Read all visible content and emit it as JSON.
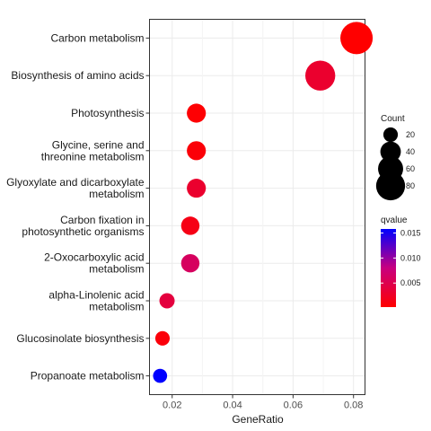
{
  "chart_data": {
    "type": "scatter",
    "title": "",
    "xlabel": "GeneRatio",
    "ylabel": "",
    "xlim": [
      0.0125,
      0.0838
    ],
    "xticks": [
      "0.02",
      "0.04",
      "0.06",
      "0.08"
    ],
    "xtick_values": [
      0.02,
      0.04,
      0.06,
      0.08
    ],
    "grid": true,
    "legend_position": "right",
    "categories": [
      "Carbon metabolism",
      "Biosynthesis of amino acids",
      "Photosynthesis",
      "Glycine, serine and threonine metabolism",
      "Glyoxylate and dicarboxylate metabolism",
      "Carbon fixation in photosynthetic organisms",
      "2-Oxocarboxylic acid metabolism",
      "alpha-Linolenic acid metabolism",
      "Glucosinolate biosynthesis",
      "Propanoate metabolism"
    ],
    "category_lines": [
      [
        "Carbon metabolism"
      ],
      [
        "Biosynthesis of amino acids"
      ],
      [
        "Photosynthesis"
      ],
      [
        "Glycine, serine and",
        "threonine metabolism"
      ],
      [
        "Glyoxylate and dicarboxylate",
        "metabolism"
      ],
      [
        "Carbon fixation in",
        "photosynthetic organisms"
      ],
      [
        "2-Oxocarboxylic acid",
        "metabolism"
      ],
      [
        "alpha-Linolenic acid",
        "metabolism"
      ],
      [
        "Glucosinolate biosynthesis"
      ],
      [
        "Propanoate metabolism"
      ]
    ],
    "points": [
      {
        "category": "Carbon metabolism",
        "x": 0.081,
        "count": 90,
        "qvalue": 0.0002
      },
      {
        "category": "Biosynthesis of amino acids",
        "x": 0.069,
        "count": 77,
        "qvalue": 0.003
      },
      {
        "category": "Photosynthesis",
        "x": 0.028,
        "count": 31,
        "qvalue": 0.0004
      },
      {
        "category": "Glycine, serine and threonine metabolism",
        "x": 0.028,
        "count": 31,
        "qvalue": 0.0007
      },
      {
        "category": "Glyoxylate and dicarboxylate metabolism",
        "x": 0.028,
        "count": 31,
        "qvalue": 0.003
      },
      {
        "category": "Carbon fixation in photosynthetic organisms",
        "x": 0.026,
        "count": 29,
        "qvalue": 0.0015
      },
      {
        "category": "2-Oxocarboxylic acid metabolism",
        "x": 0.026,
        "count": 29,
        "qvalue": 0.006
      },
      {
        "category": "alpha-Linolenic acid metabolism",
        "x": 0.0183,
        "count": 20,
        "qvalue": 0.004
      },
      {
        "category": "Glucosinolate biosynthesis",
        "x": 0.0168,
        "count": 18,
        "qvalue": 0.0008
      },
      {
        "category": "Propanoate metabolism",
        "x": 0.016,
        "count": 17,
        "qvalue": 0.0158
      }
    ],
    "size_legend": {
      "title": "Count",
      "values": [
        20,
        40,
        60,
        80
      ],
      "labels": [
        "20",
        "40",
        "60",
        "80"
      ]
    },
    "color_legend": {
      "title": "qvalue",
      "min": 0.0002,
      "max": 0.0158,
      "low_color": "#FF0000",
      "high_color": "#0000FF",
      "ticks": [
        0.005,
        0.01,
        0.015
      ],
      "labels": [
        "0.005",
        "0.010",
        "0.015"
      ]
    }
  }
}
